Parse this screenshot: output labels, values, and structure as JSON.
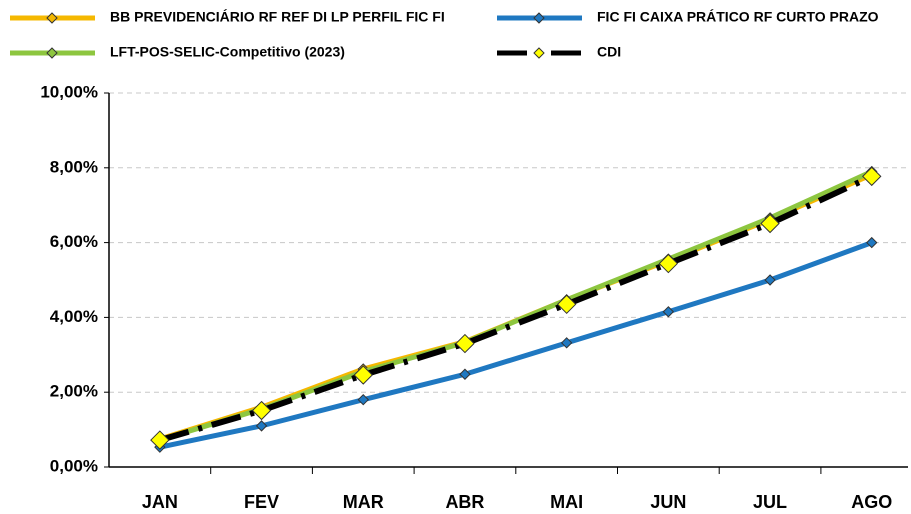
{
  "chart_data": {
    "type": "line",
    "categories": [
      "JAN",
      "FEV",
      "MAR",
      "ABR",
      "MAI",
      "JUN",
      "JUL",
      "AGO"
    ],
    "series": [
      {
        "name": "BB PREVIDENCIÁRIO RF REF DI LP PERFIL FIC FI",
        "color": "#f5b800",
        "marker_color": "#f5b800",
        "values": [
          0.75,
          1.6,
          2.62,
          3.35,
          4.47,
          5.52,
          6.62,
          7.82
        ]
      },
      {
        "name": "FIC FI CAIXA PRÁTICO RF CURTO PRAZO",
        "color": "#1f78c1",
        "marker_color": "#1f78c1",
        "values": [
          0.53,
          1.1,
          1.8,
          2.48,
          3.32,
          4.15,
          5.0,
          6.0
        ]
      },
      {
        "name": "LFT-POS-SELIC-Competitivo (2023)",
        "color": "#8dc63f",
        "marker_color": "#8dc63f",
        "values": [
          0.72,
          1.55,
          2.55,
          3.33,
          4.47,
          5.56,
          6.66,
          7.9
        ]
      },
      {
        "name": "CDI",
        "color": "#000000",
        "marker_color": "#ffff00",
        "dashed": true,
        "values": [
          0.72,
          1.51,
          2.46,
          3.3,
          4.35,
          5.44,
          6.51,
          7.77
        ]
      }
    ],
    "ylim": [
      0,
      10
    ],
    "yticks": [
      {
        "value": 0,
        "label": "0,00%"
      },
      {
        "value": 2,
        "label": "2,00%"
      },
      {
        "value": 4,
        "label": "4,00%"
      },
      {
        "value": 6,
        "label": "6,00%"
      },
      {
        "value": 8,
        "label": "8,00%"
      },
      {
        "value": 10,
        "label": "10,00%"
      }
    ],
    "grid": true
  }
}
